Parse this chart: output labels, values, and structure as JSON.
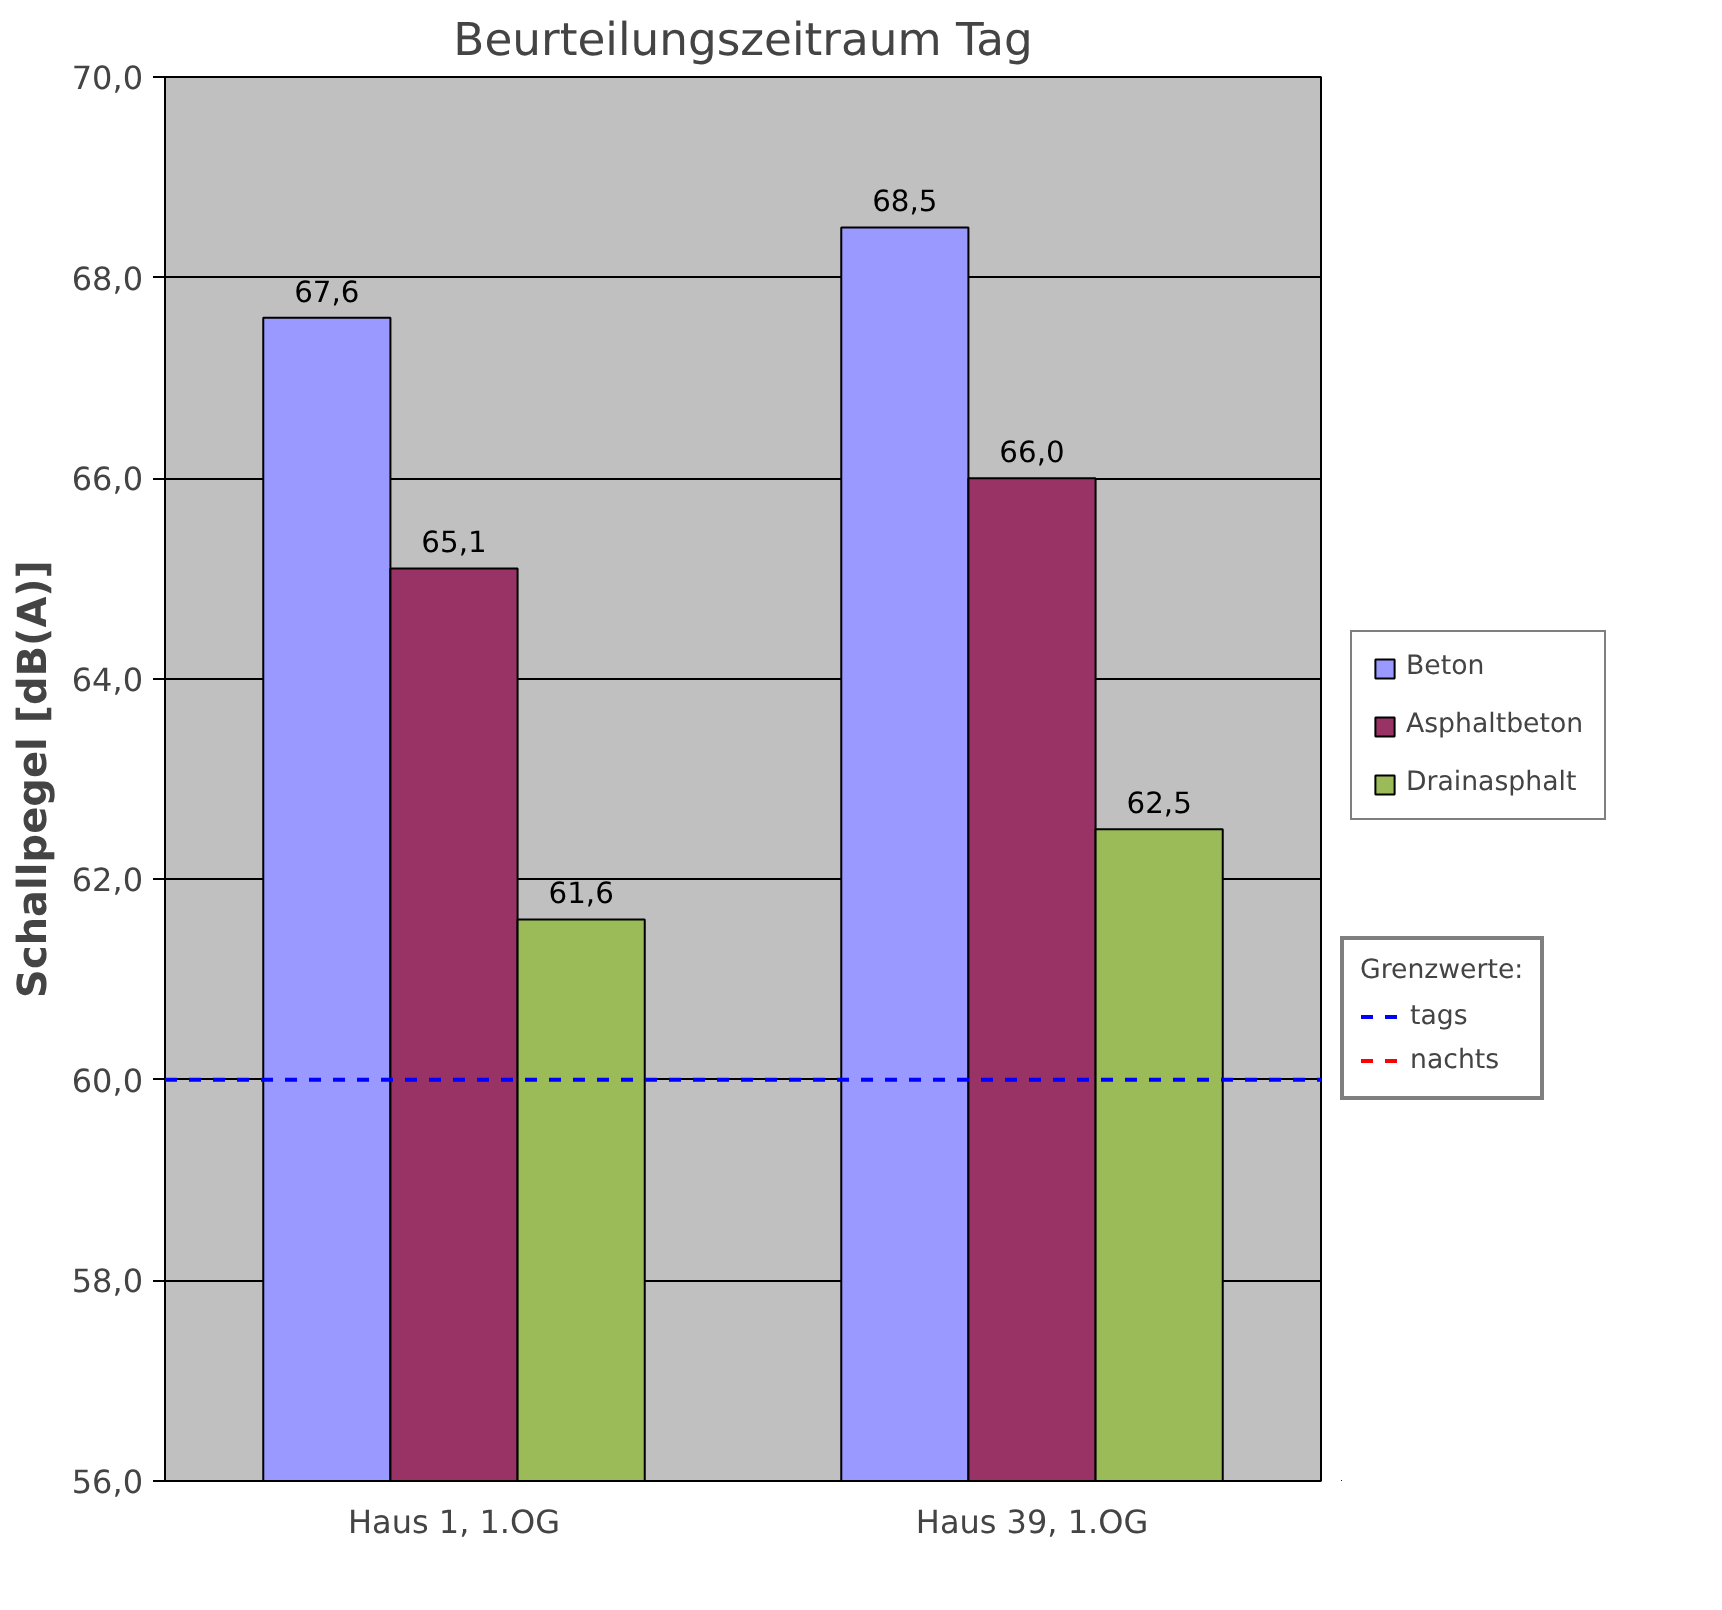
{
  "chart_data": {
    "type": "bar",
    "title": "Beurteilungszeitraum Tag",
    "ylabel": "Schallpegel [dB(A)]",
    "categories": [
      "Haus 1, 1.OG",
      "Haus 39, 1.OG"
    ],
    "series": [
      {
        "name": "Beton",
        "color": "#9999ff",
        "values": [
          67.6,
          68.5
        ],
        "value_labels": [
          "67,6",
          "68,5"
        ]
      },
      {
        "name": "Asphaltbeton",
        "color": "#993366",
        "values": [
          65.1,
          66.0
        ],
        "value_labels": [
          "65,1",
          "66,0"
        ]
      },
      {
        "name": "Drainasphalt",
        "color": "#9bbb59",
        "values": [
          61.6,
          62.5
        ],
        "value_labels": [
          "61,6",
          "62,5"
        ]
      }
    ],
    "ylim": [
      56,
      70
    ],
    "yticks": [
      {
        "value": 56,
        "label": "56,0"
      },
      {
        "value": 58,
        "label": "58,0"
      },
      {
        "value": 60,
        "label": "60,0"
      },
      {
        "value": 62,
        "label": "62,0"
      },
      {
        "value": 64,
        "label": "64,0"
      },
      {
        "value": 66,
        "label": "66,0"
      },
      {
        "value": 68,
        "label": "68,0"
      },
      {
        "value": 70,
        "label": "70,0"
      }
    ],
    "grid": "y",
    "legend": "right",
    "ref_lines": [
      {
        "axis": "y",
        "value": 60,
        "label": "tags",
        "color": "#0000ff",
        "line_style": "dashed"
      },
      {
        "axis": "y",
        "value": null,
        "label": "nachts",
        "color": "#ff0000",
        "line_style": "dashed"
      }
    ],
    "annotations": [
      "Grenzwerte:"
    ]
  }
}
